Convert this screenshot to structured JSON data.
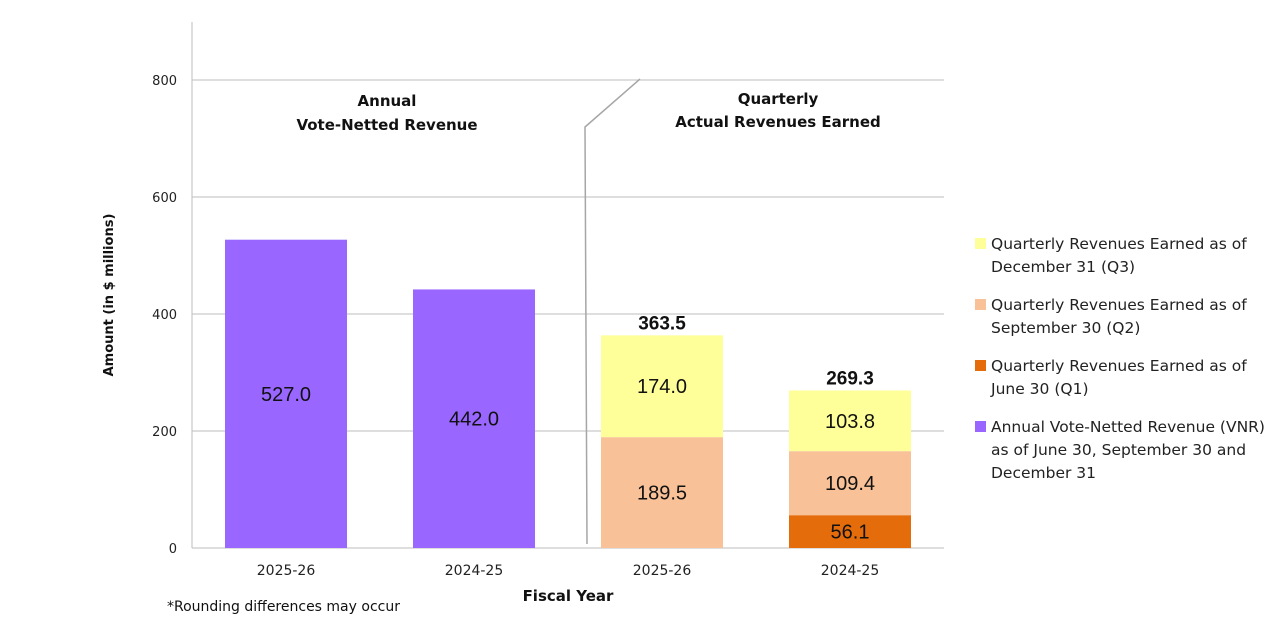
{
  "chart_data": {
    "type": "bar",
    "ylabel": "Amount (in $ millions)",
    "xlabel": "Fiscal Year",
    "ylim": [
      0,
      900
    ],
    "yticks": [
      0,
      200,
      400,
      600,
      800
    ],
    "grid": true,
    "legend_position": "right",
    "note": "*Rounding differences may occur",
    "sections": [
      {
        "title_lines": [
          "Annual",
          "Vote-Netted Revenue"
        ]
      },
      {
        "title_lines": [
          "Quarterly",
          "Actual Revenues Earned"
        ]
      }
    ],
    "series": [
      {
        "name": "Annual Vote-Netted Revenue (VNR) as of June 30, September 30 and December 31",
        "color": "#9966ff"
      },
      {
        "name": "Quarterly Revenues Earned as of June 30 (Q1)",
        "color": "#e46c0a"
      },
      {
        "name": "Quarterly Revenues Earned as of September 30 (Q2)",
        "color": "#f8c198"
      },
      {
        "name": "Quarterly Revenues Earned as of December 31 (Q3)",
        "color": "#ffff99"
      }
    ],
    "legend_order": [
      3,
      2,
      1,
      0
    ],
    "legend_lines": [
      [
        "Quarterly Revenues Earned as of",
        "December 31 (Q3)"
      ],
      [
        "Quarterly Revenues Earned as of",
        "September 30 (Q2)"
      ],
      [
        "Quarterly Revenues Earned as of",
        "June 30 (Q1)"
      ],
      [
        "Annual Vote-Netted Revenue (VNR)",
        "as of June 30, September 30 and",
        "December 31"
      ]
    ],
    "bars": [
      {
        "category": "2025-26",
        "group": "annual",
        "segments": [
          {
            "series": 0,
            "value": 527.0,
            "label": "527.0"
          }
        ]
      },
      {
        "category": "2024-25",
        "group": "annual",
        "segments": [
          {
            "series": 0,
            "value": 442.0,
            "label": "442.0"
          }
        ]
      },
      {
        "category": "2025-26",
        "group": "quarterly",
        "total_label": "363.5",
        "segments": [
          {
            "series": 1,
            "value": 0,
            "label": ""
          },
          {
            "series": 2,
            "value": 189.5,
            "label": "189.5"
          },
          {
            "series": 3,
            "value": 174.0,
            "label": "174.0"
          }
        ]
      },
      {
        "category": "2024-25",
        "group": "quarterly",
        "total_label": "269.3",
        "segments": [
          {
            "series": 1,
            "value": 56.1,
            "label": "56.1"
          },
          {
            "series": 2,
            "value": 109.4,
            "label": "109.4"
          },
          {
            "series": 3,
            "value": 103.8,
            "label": "103.8"
          }
        ]
      }
    ]
  }
}
